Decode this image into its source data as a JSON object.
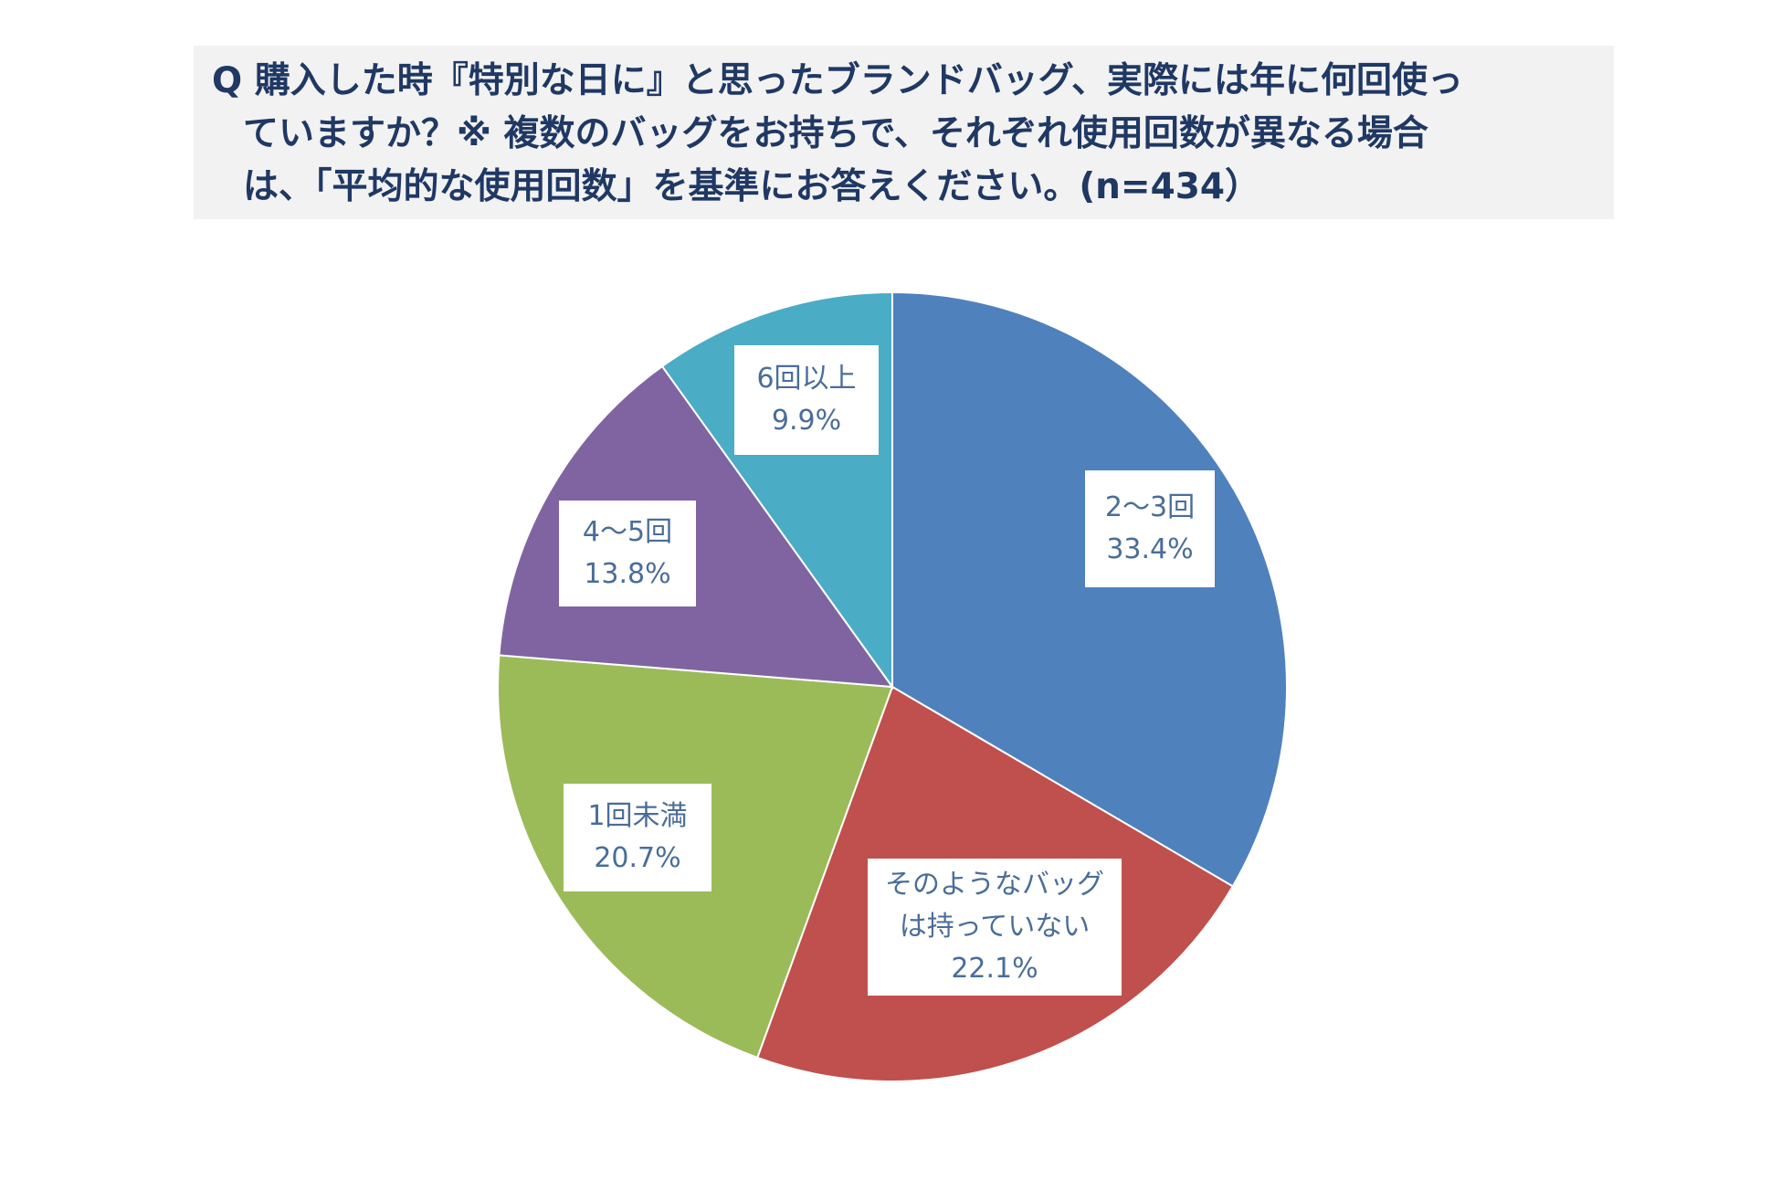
{
  "header": {
    "title_lines": [
      "Q  購入した時『特別な日に』と思ったブランドバッグ、実際には年に何回使っ",
      "ていますか？※ 複数のバッグをお持ちで、それぞれ使用回数が異なる場合",
      "は、「平均的な使用回数」を基準にお答えください。(n=434）"
    ]
  },
  "chart_data": {
    "type": "pie",
    "start_angle_deg": 0,
    "direction": "clockwise",
    "legend": "none",
    "slices": [
      {
        "label_lines": [
          "2〜3回"
        ],
        "value": 33.4,
        "value_text": "33.4%",
        "color": "#4f81bd"
      },
      {
        "label_lines": [
          "そのようなバッグ",
          "は持っていない"
        ],
        "value": 22.1,
        "value_text": "22.1%",
        "color": "#c0504d"
      },
      {
        "label_lines": [
          "1回未満"
        ],
        "value": 20.7,
        "value_text": "20.7%",
        "color": "#9bbb59"
      },
      {
        "label_lines": [
          "4〜5回"
        ],
        "value": 13.8,
        "value_text": "13.8%",
        "color": "#8064a2"
      },
      {
        "label_lines": [
          "6回以上"
        ],
        "value": 9.9,
        "value_text": "9.9%",
        "color": "#4bacc6"
      }
    ]
  }
}
